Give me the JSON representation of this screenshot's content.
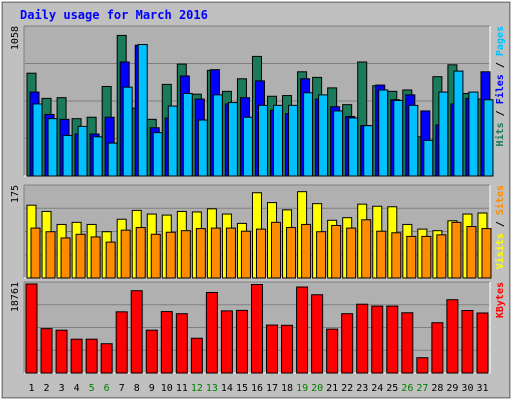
{
  "chart_data": {
    "type": "bar",
    "title": "Daily usage for March 2016",
    "categories": [
      "1",
      "2",
      "3",
      "4",
      "5",
      "6",
      "7",
      "8",
      "9",
      "10",
      "11",
      "12",
      "13",
      "14",
      "15",
      "16",
      "17",
      "18",
      "19",
      "20",
      "21",
      "22",
      "23",
      "24",
      "25",
      "26",
      "27",
      "28",
      "29",
      "30",
      "31"
    ],
    "weekend_days": [
      "5",
      "6",
      "12",
      "13",
      "19",
      "20",
      "26",
      "27"
    ],
    "panels": [
      {
        "id": "pages-files-hits",
        "ymax_label": "1058",
        "ymax": 1058,
        "legend": [
          "Pages",
          "Files",
          "Hits"
        ],
        "series": [
          {
            "name": "Hits",
            "color": "#1a7a5a",
            "values": [
              735,
              555,
              560,
              410,
              420,
              640,
              1005,
              485,
              405,
              655,
              800,
              585,
              755,
              605,
              695,
              855,
              570,
              575,
              745,
              705,
              630,
              510,
              815,
              645,
              605,
              615,
              280,
              710,
              795,
              590,
              550
            ]
          },
          {
            "name": "Files",
            "color": "#0000ff",
            "values": [
              600,
              440,
              405,
              300,
              300,
              420,
              815,
              935,
              345,
              415,
              715,
              550,
              760,
              515,
              560,
              680,
              470,
              445,
              695,
              550,
              495,
              425,
              360,
              650,
              545,
              580,
              465,
              365,
              515,
              555,
              745
            ]
          },
          {
            "name": "Pages",
            "color": "#00c0ff",
            "values": [
              515,
              410,
              290,
              355,
              280,
              235,
              635,
              940,
              310,
              500,
              590,
              400,
              580,
              525,
              420,
              505,
              505,
              505,
              595,
              580,
              465,
              415,
              360,
              615,
              540,
              505,
              255,
              600,
              750,
              600,
              545
            ]
          }
        ]
      },
      {
        "id": "sites-visits",
        "ymax_label": "175",
        "ymax": 175,
        "legend": [
          "Sites",
          "Visits"
        ],
        "series": [
          {
            "name": "Visits",
            "color": "#ffff00",
            "values": [
              140,
              128,
              103,
              107,
              103,
              89,
              113,
              130,
              123,
              121,
              128,
              127,
              133,
              123,
              105,
              164,
              145,
              131,
              166,
              143,
              111,
              116,
              142,
              138,
              137,
              103,
              94,
              91,
              110,
              123,
              125
            ]
          },
          {
            "name": "Sites",
            "color": "#ff8c00",
            "values": [
              96,
              89,
              77,
              84,
              79,
              69,
              92,
              97,
              84,
              88,
              91,
              95,
              96,
              96,
              90,
              94,
              107,
              97,
              103,
              89,
              101,
              96,
              112,
              90,
              87,
              80,
              80,
              83,
              107,
              99,
              95
            ]
          }
        ]
      },
      {
        "id": "kbytes",
        "ymax_label": "18761",
        "ymax": 18761,
        "legend": [
          "KBytes"
        ],
        "series": [
          {
            "name": "KBytes",
            "color": "#ff0000",
            "values": [
              18761,
              9350,
              9025,
              7125,
              7125,
              6175,
              12900,
              17350,
              9025,
              12950,
              12500,
              7325,
              16975,
              13100,
              13200,
              18650,
              10100,
              10050,
              18125,
              16500,
              9250,
              12500,
              14500,
              14100,
              14100,
              12700,
              3225,
              10600,
              15450,
              13175,
              12650
            ]
          }
        ]
      }
    ]
  },
  "colors": {
    "background": "#c0c0c0",
    "plot_background": "#b0b0b0",
    "title": "#0000ff",
    "day_label": "#000000",
    "weekend_day_label": "#008000"
  }
}
